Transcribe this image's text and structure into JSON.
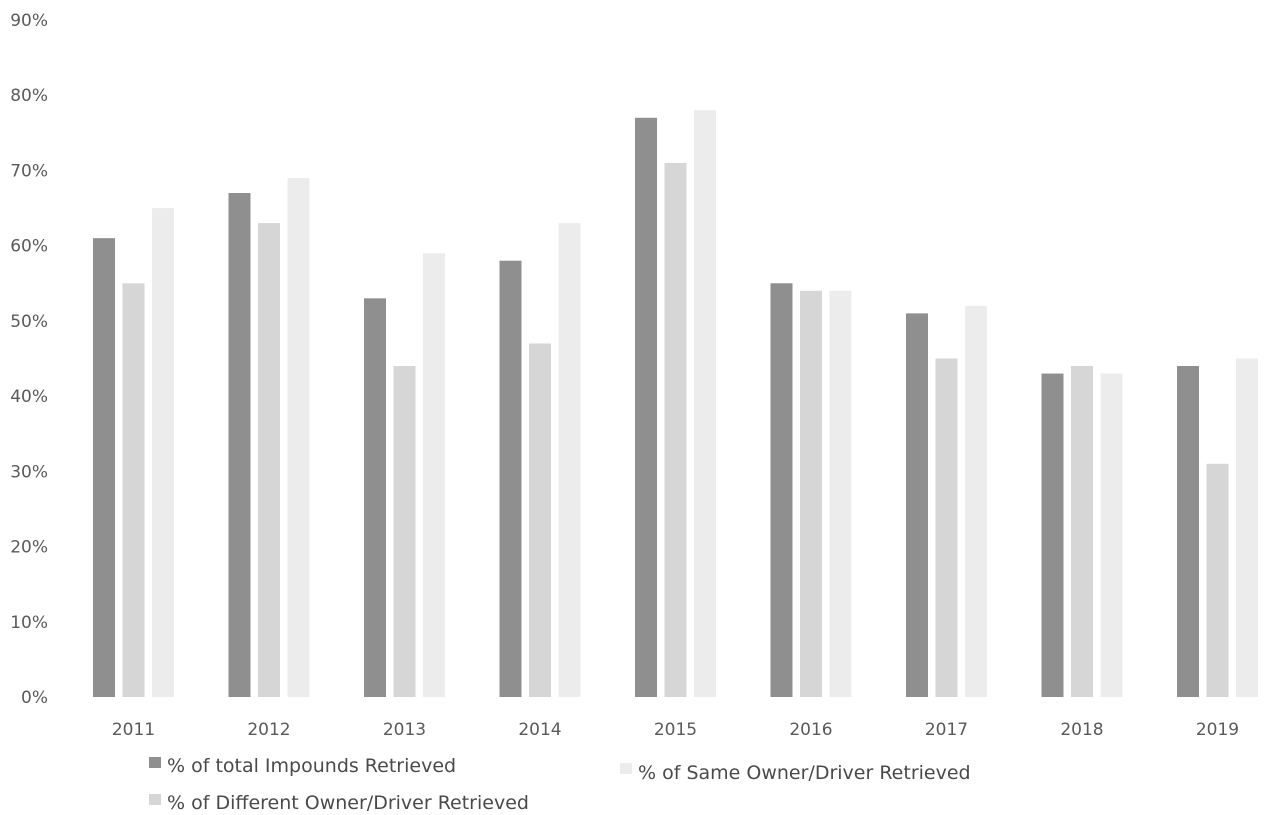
{
  "chart_data": {
    "type": "bar",
    "title": "",
    "xlabel": "",
    "ylabel": "",
    "ylim": [
      0,
      90
    ],
    "y_ticks": [
      "0%",
      "10%",
      "20%",
      "30%",
      "40%",
      "50%",
      "60%",
      "70%",
      "80%",
      "90%"
    ],
    "grid": false,
    "legend_position": "bottom",
    "categories": [
      "2011",
      "2012",
      "2013",
      "2014",
      "2015",
      "2016",
      "2017",
      "2018",
      "2019"
    ],
    "series": [
      {
        "name": "% of total Impounds Retrieved",
        "color": "#8f8f8f",
        "values": [
          61,
          67,
          53,
          58,
          77,
          55,
          51,
          43,
          44
        ]
      },
      {
        "name": "% of Different Owner/Driver Retrieved",
        "color": "#d6d6d6",
        "values": [
          55,
          63,
          44,
          47,
          71,
          54,
          45,
          44,
          31
        ]
      },
      {
        "name": "% of Same Owner/Driver Retrieved",
        "color": "#ececec",
        "values": [
          65,
          69,
          59,
          63,
          78,
          54,
          52,
          43,
          45
        ]
      }
    ]
  }
}
